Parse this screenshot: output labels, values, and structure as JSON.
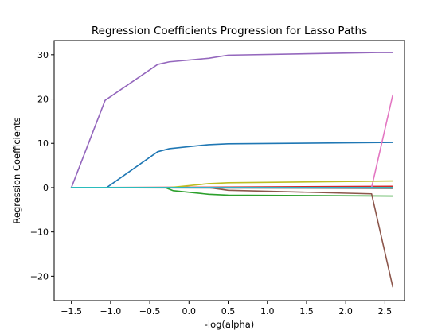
{
  "chart_data": {
    "type": "line",
    "title": "Regression Coefficients Progression for Lasso Paths",
    "xlabel": "-log(alpha)",
    "ylabel": "Regression Coefficients",
    "xlim": [
      -1.72,
      2.75
    ],
    "ylim": [
      -25.5,
      33.2
    ],
    "xticks": [
      -1.5,
      -1.0,
      -0.5,
      0.0,
      0.5,
      1.0,
      1.5,
      2.0,
      2.5
    ],
    "xtick_labels": [
      "−1.5",
      "−1.0",
      "−0.5",
      "0.0",
      "0.5",
      "1.0",
      "1.5",
      "2.0",
      "2.5"
    ],
    "yticks": [
      -20,
      -10,
      0,
      10,
      20,
      30
    ],
    "ytick_labels": [
      "−20",
      "−10",
      "0",
      "10",
      "20",
      "30"
    ],
    "grid": false,
    "series": [
      {
        "color": "#1f77b4",
        "x": [
          -1.5,
          -1.05,
          -0.4,
          -0.25,
          0.25,
          0.5,
          2.6
        ],
        "y": [
          0,
          0,
          8.1,
          8.8,
          9.7,
          9.9,
          10.2
        ]
      },
      {
        "color": "#ff7f0e",
        "x": [
          -1.5,
          2.6
        ],
        "y": [
          0,
          0
        ]
      },
      {
        "color": "#2ca02c",
        "x": [
          -1.5,
          -0.3,
          -0.2,
          0.25,
          0.5,
          2.6
        ],
        "y": [
          0,
          0,
          -0.7,
          -1.5,
          -1.7,
          -1.9
        ]
      },
      {
        "color": "#d62728",
        "x": [
          -1.5,
          0.25,
          2.6
        ],
        "y": [
          0,
          0.1,
          0.3
        ]
      },
      {
        "color": "#9467bd",
        "x": [
          -1.5,
          -1.07,
          -0.4,
          -0.25,
          0.25,
          0.5,
          2.4,
          2.6
        ],
        "y": [
          0,
          19.7,
          27.8,
          28.4,
          29.2,
          29.9,
          30.5,
          30.5
        ]
      },
      {
        "color": "#8c564b",
        "x": [
          -1.5,
          0.25,
          0.5,
          2.33,
          2.6
        ],
        "y": [
          0,
          0,
          -0.6,
          -1.4,
          -22.4
        ]
      },
      {
        "color": "#e377c2",
        "x": [
          -1.5,
          2.33,
          2.6
        ],
        "y": [
          0,
          0,
          20.9
        ]
      },
      {
        "color": "#7f7f7f",
        "x": [
          -1.5,
          2.6
        ],
        "y": [
          0,
          -0.2
        ]
      },
      {
        "color": "#bcbd22",
        "x": [
          -1.5,
          -0.25,
          0.25,
          0.5,
          2.6
        ],
        "y": [
          0,
          0,
          0.9,
          1.1,
          1.5
        ]
      },
      {
        "color": "#17becf",
        "x": [
          -1.5,
          2.6
        ],
        "y": [
          0,
          0
        ]
      }
    ]
  }
}
